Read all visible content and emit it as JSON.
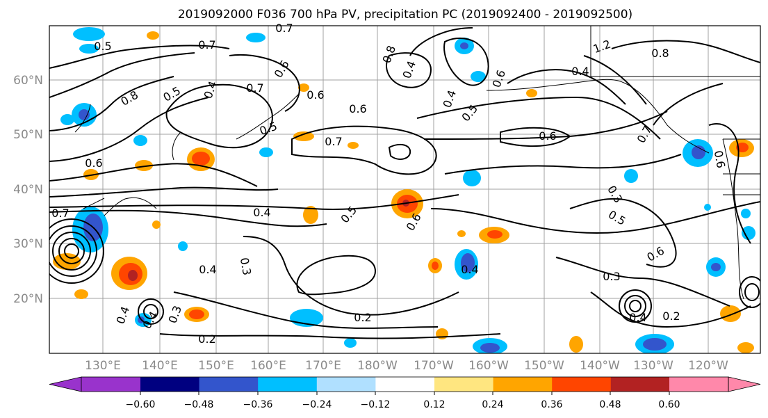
{
  "title": "2019092000 F036 700 hPa PV, precipitation PC (2019092400 - 2019092500)",
  "lon_ticks": [
    "130°E",
    "140°E",
    "150°E",
    "160°E",
    "170°E",
    "180°W",
    "170°W",
    "160°W",
    "150°W",
    "140°W",
    "130°W",
    "120°W"
  ],
  "lat_ticks": [
    "60°N",
    "50°N",
    "40°N",
    "30°N",
    "20°N"
  ],
  "contour_labels": [
    "0.5",
    "0.7",
    "0.7",
    "0.6",
    "0.8",
    "0.6",
    "0.4",
    "1.2",
    "0.8",
    "0.8",
    "0.5",
    "0.4",
    "0.7",
    "0.6",
    "0.6",
    "0.5",
    "0.7",
    "0.6",
    "0.5",
    "0.6",
    "0.4",
    "0.4",
    "0.7",
    "0.6",
    "0.4",
    "0.4",
    "0.3",
    "0.5",
    "0.6",
    "0.3",
    "0.4",
    "0.3",
    "0.4",
    "0.2",
    "0.2",
    "0.3",
    "0.4",
    "0.4",
    "0.2",
    "0.6",
    "0.5",
    "0.7"
  ],
  "colorbar": {
    "ticks": [
      "−0.60",
      "−0.48",
      "−0.36",
      "−0.24",
      "−0.12",
      "0.12",
      "0.24",
      "0.36",
      "0.48",
      "0.60"
    ],
    "colors": [
      "#9933cc",
      "#000080",
      "#3355cc",
      "#00bfff",
      "#b0e0ff",
      "#ffffff",
      "#ffe680",
      "#ffa500",
      "#ff4500",
      "#b22222",
      "#ff88aa"
    ]
  },
  "colors": {
    "contour": "#000000",
    "grid": "#9a9a9a",
    "coast": "#000000",
    "tick_label": "#8a8a8a"
  }
}
